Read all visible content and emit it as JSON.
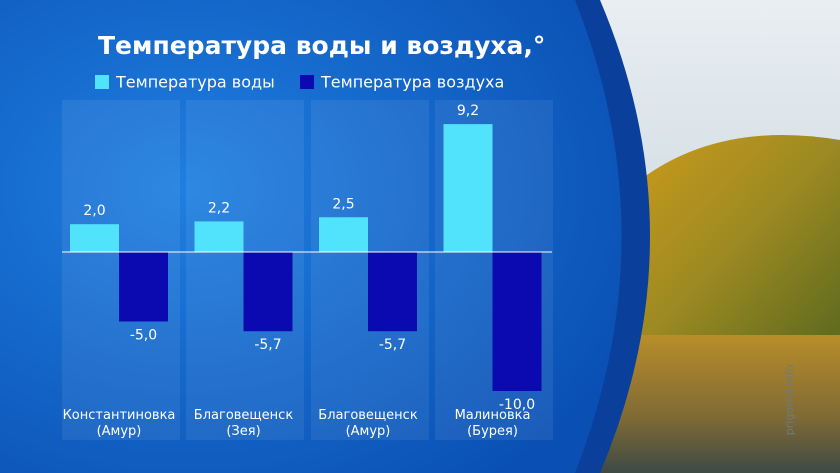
{
  "chart_data": {
    "type": "bar",
    "title": "Температура воды и воздуха,°",
    "categories": [
      "Константиновка\n(Амур)",
      "Благовещенск\n(Зея)",
      "Благовещенск\n(Амур)",
      "Малиновка\n(Бурея)"
    ],
    "series": [
      {
        "name": "Температура воды",
        "color": "#52e3fc",
        "values": [
          2.0,
          2.2,
          2.5,
          9.2
        ],
        "value_labels": [
          "2,0",
          "2,2",
          "2,5",
          "9,2"
        ]
      },
      {
        "name": "Температура воздуха",
        "color": "#0a0ab0",
        "values": [
          -5.0,
          -5.7,
          -5.7,
          -10.0
        ],
        "value_labels": [
          "-5,0",
          "-5,7",
          "-5,7",
          "-10,0"
        ]
      }
    ],
    "watermark": "prigorod.info"
  }
}
